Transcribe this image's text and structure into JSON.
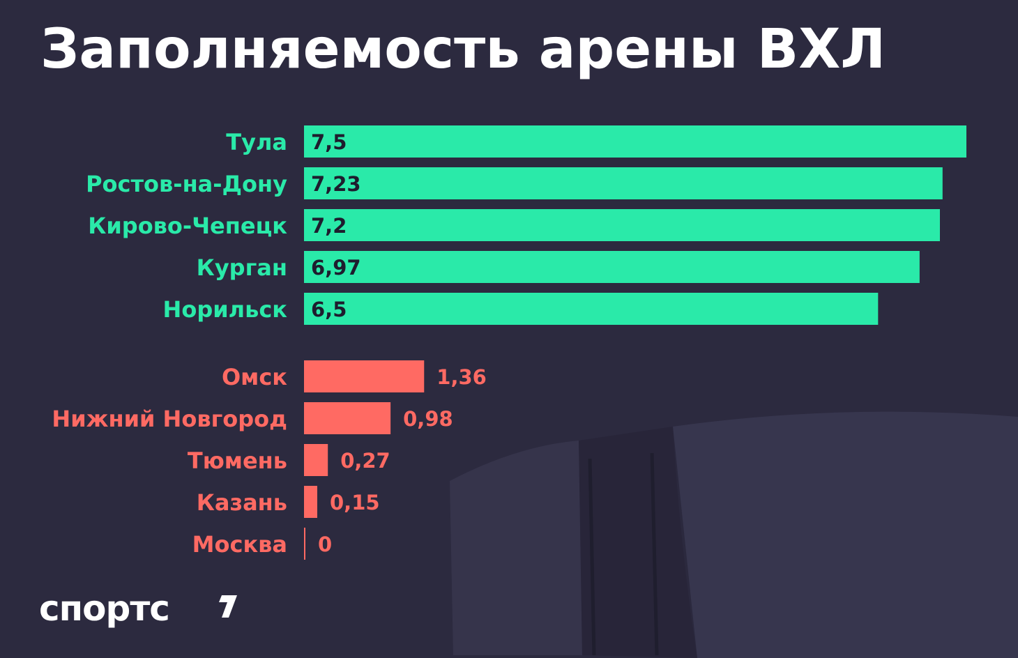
{
  "title": "Заполняемость арены ВХЛ",
  "brand": {
    "logo_text": "спортс"
  },
  "colors": {
    "background": "#2c2a3f",
    "top_group": "#2aeaa9",
    "bottom_group": "#ff6a63",
    "title": "#ffffff",
    "value_on_bar": "#1e1d2e"
  },
  "chart_data": {
    "type": "bar",
    "orientation": "horizontal",
    "title": "Заполняемость арены ВХЛ",
    "xlabel": "",
    "ylabel": "",
    "xlim": [
      0,
      7.5
    ],
    "grid": false,
    "legend": "none",
    "groups": [
      {
        "name": "top",
        "color": "#2aeaa9",
        "categories": [
          "Тула",
          "Ростов-на-Дону",
          "Кирово-Чепецк",
          "Курган",
          "Норильск"
        ],
        "values": [
          7.5,
          7.23,
          7.2,
          6.97,
          6.5
        ],
        "labels": [
          "7,5",
          "7,23",
          "7,2",
          "6,97",
          "6,5"
        ],
        "value_label_position": "inside"
      },
      {
        "name": "bottom",
        "color": "#ff6a63",
        "categories": [
          "Омск",
          "Нижний Новгород",
          "Тюмень",
          "Казань",
          "Москва"
        ],
        "values": [
          1.36,
          0.98,
          0.27,
          0.15,
          0
        ],
        "labels": [
          "1,36",
          "0,98",
          "0,27",
          "0,15",
          "0"
        ],
        "value_label_position": "outside"
      }
    ]
  }
}
